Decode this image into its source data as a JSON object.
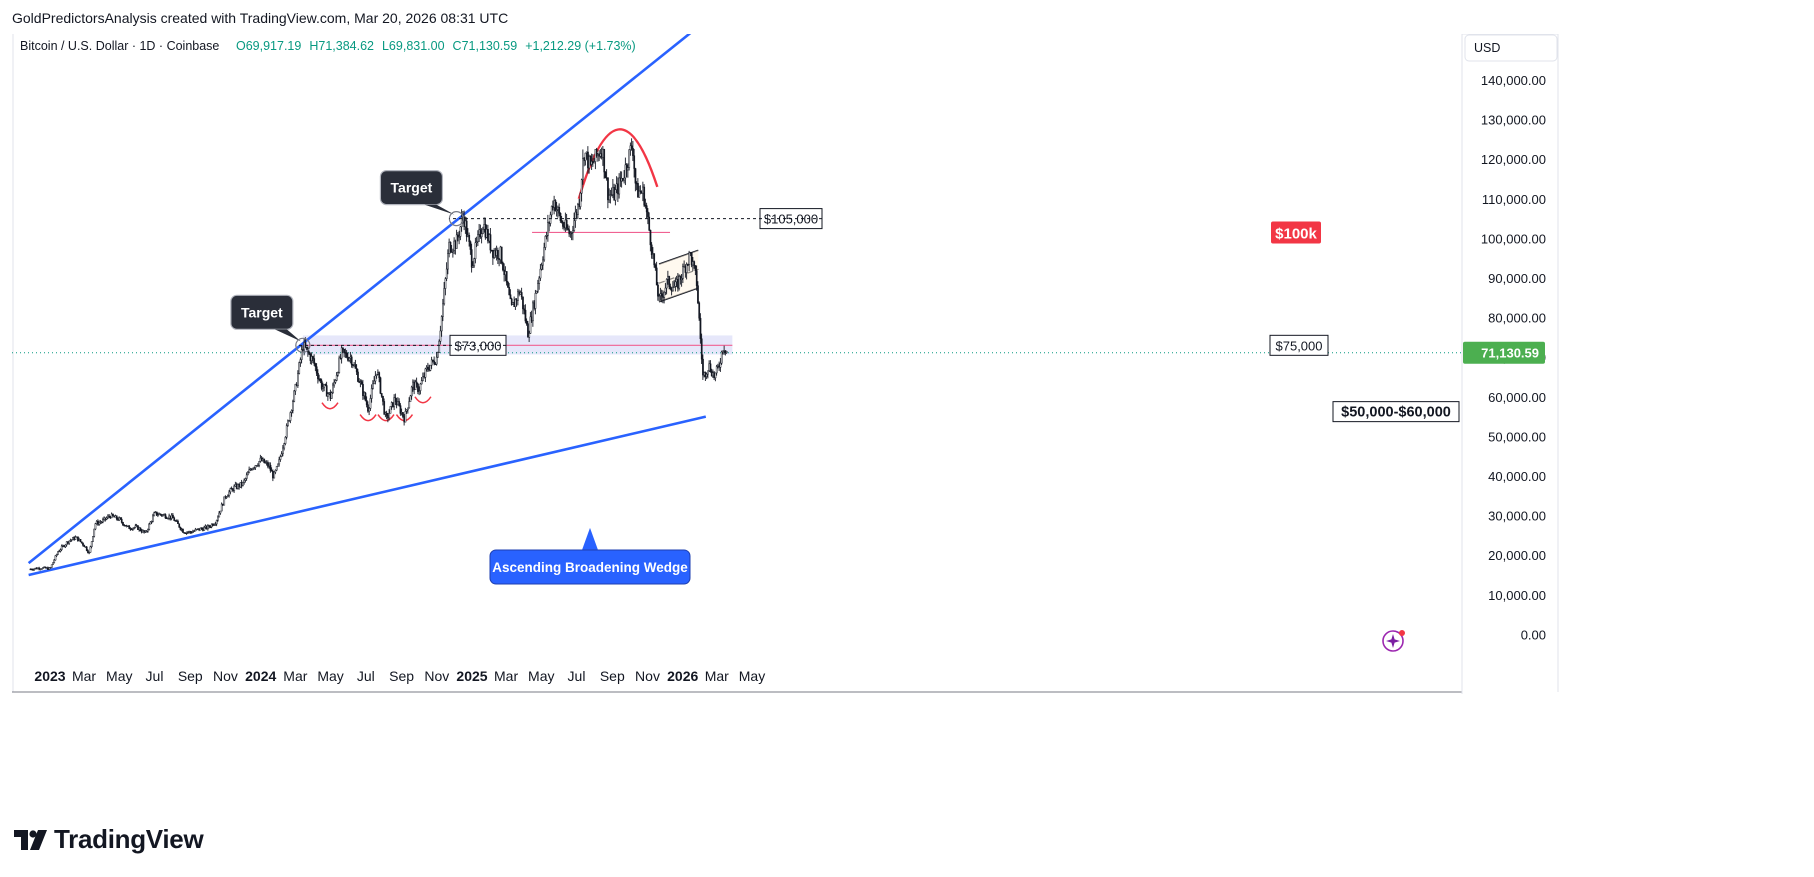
{
  "credit": "GoldPredictorsAnalysis created with TradingView.com, Mar 20, 2026 08:31 UTC",
  "symbol_line": {
    "symbol": "Bitcoin / U.S. Dollar · 1D · Coinbase",
    "open": "O69,917.19",
    "high": "H71,384.62",
    "low": "L69,831.00",
    "close": "C71,130.59",
    "change": "+1,212.29 (+1.73%)"
  },
  "currency": "USD",
  "last_price_label": "71,130.59",
  "footer_brand": "TradingView",
  "colors": {
    "up": "#089981",
    "wedge": "#2962ff",
    "dome": "#f23645",
    "resistance": "#f06292",
    "target_box": "#2a2e39",
    "badge_red": "#f23645",
    "zone": "#d1d4f5",
    "last_price_bg": "#4caf50"
  },
  "chart_data": {
    "type": "line",
    "ylim": [
      -12000,
      152000
    ],
    "y_ticks": [
      "140,000.00",
      "130,000.00",
      "120,000.00",
      "110,000.00",
      "100,000.00",
      "90,000.00",
      "80,000.00",
      "70,000.00",
      "60,000.00",
      "50,000.00",
      "40,000.00",
      "30,000.00",
      "20,000.00",
      "10,000.00",
      "0.00"
    ],
    "x_ticks": [
      "2023",
      "Mar",
      "May",
      "Jul",
      "Sep",
      "Nov",
      "2024",
      "Mar",
      "May",
      "Jul",
      "Sep",
      "Nov",
      "2025",
      "Mar",
      "May",
      "Jul",
      "Sep",
      "Nov",
      "2026",
      "Mar",
      "May"
    ],
    "series": [
      {
        "x": [
          "2022-11-28",
          "2022-12-15",
          "2023-01-01",
          "2023-01-15",
          "2023-02-01",
          "2023-02-15",
          "2023-03-01",
          "2023-03-10",
          "2023-03-20",
          "2023-04-01",
          "2023-04-15",
          "2023-05-01",
          "2023-05-15",
          "2023-06-01",
          "2023-06-15",
          "2023-07-01",
          "2023-07-15",
          "2023-08-01",
          "2023-08-20",
          "2023-09-01",
          "2023-09-15",
          "2023-10-01",
          "2023-10-15",
          "2023-11-01",
          "2023-11-15",
          "2023-12-01",
          "2023-12-15",
          "2024-01-01",
          "2024-01-15",
          "2024-01-23",
          "2024-02-01",
          "2024-02-15",
          "2024-03-01",
          "2024-03-14",
          "2024-04-01",
          "2024-04-15",
          "2024-05-01",
          "2024-05-20",
          "2024-06-05",
          "2024-06-20",
          "2024-07-05",
          "2024-07-20",
          "2024-08-05",
          "2024-08-20",
          "2024-09-06",
          "2024-09-20",
          "2024-10-01",
          "2024-10-15",
          "2024-11-01",
          "2024-11-10",
          "2024-11-22",
          "2024-12-05",
          "2024-12-17",
          "2025-01-01",
          "2025-01-20",
          "2025-02-05",
          "2025-02-20",
          "2025-03-10",
          "2025-03-25",
          "2025-04-08",
          "2025-04-20",
          "2025-05-05",
          "2025-05-22",
          "2025-06-05",
          "2025-06-20",
          "2025-07-05",
          "2025-07-14",
          "2025-07-25",
          "2025-08-14",
          "2025-08-25",
          "2025-09-05",
          "2025-09-20",
          "2025-10-06",
          "2025-10-12",
          "2025-10-25",
          "2025-11-05",
          "2025-11-21",
          "2025-12-05",
          "2025-12-20",
          "2026-01-05",
          "2026-01-14",
          "2026-01-25",
          "2026-02-05",
          "2026-02-15",
          "2026-02-25",
          "2026-03-05",
          "2026-03-12",
          "2026-03-20"
        ],
        "values": [
          16500,
          16800,
          16600,
          21000,
          23500,
          24500,
          22500,
          20500,
          28000,
          28500,
          30000,
          29000,
          27000,
          27000,
          25500,
          30500,
          30200,
          29500,
          26000,
          25800,
          26500,
          27000,
          28500,
          35000,
          37000,
          38000,
          42000,
          44000,
          42500,
          39800,
          43000,
          52000,
          62000,
          73000,
          69000,
          63000,
          60000,
          71000,
          70000,
          64000,
          57000,
          67000,
          54000,
          59500,
          54500,
          63000,
          62000,
          67000,
          70000,
          81000,
          98000,
          99000,
          106000,
          94000,
          104000,
          97000,
          96000,
          82000,
          87000,
          76000,
          85000,
          97000,
          110000,
          104000,
          101000,
          109000,
          122000,
          118000,
          123000,
          111000,
          111000,
          116000,
          124000,
          112000,
          111500,
          101000,
          84000,
          89000,
          87500,
          93000,
          96000,
          89000,
          65000,
          68000,
          65000,
          68000,
          73000,
          71130.59
        ]
      }
    ],
    "annotations": [
      {
        "text": "Target",
        "kind": "callout",
        "date": "2024-03-14",
        "price": 73000
      },
      {
        "text": "$73,000",
        "kind": "price-label",
        "price": 73000
      },
      {
        "text": "Target",
        "kind": "callout",
        "date": "2024-12-05",
        "price": 105000
      },
      {
        "text": "$105,000",
        "kind": "price-label",
        "price": 105000
      },
      {
        "text": "$100k",
        "kind": "badge",
        "price": 101500
      },
      {
        "text": "$75,000",
        "kind": "price-label",
        "price": 73000
      },
      {
        "text": "$50,000-$60,000",
        "kind": "price-label",
        "price": 56000
      },
      {
        "text": "Ascending Broadening Wedge",
        "kind": "callout"
      }
    ],
    "wedge_upper": [
      {
        "date": "2022-11-25",
        "price": 18000
      },
      {
        "date": "2026-01-24",
        "price": 153000
      }
    ],
    "wedge_lower": [
      {
        "date": "2022-11-25",
        "price": 15000
      },
      {
        "date": "2026-02-10",
        "price": 55000
      }
    ],
    "resistance_lines": [
      {
        "from": "2024-03-14",
        "to": "2026-03-28",
        "price": 73000
      },
      {
        "from": "2025-04-15",
        "to": "2025-12-10",
        "price": 101500
      }
    ],
    "grid": false,
    "legend": "none"
  }
}
